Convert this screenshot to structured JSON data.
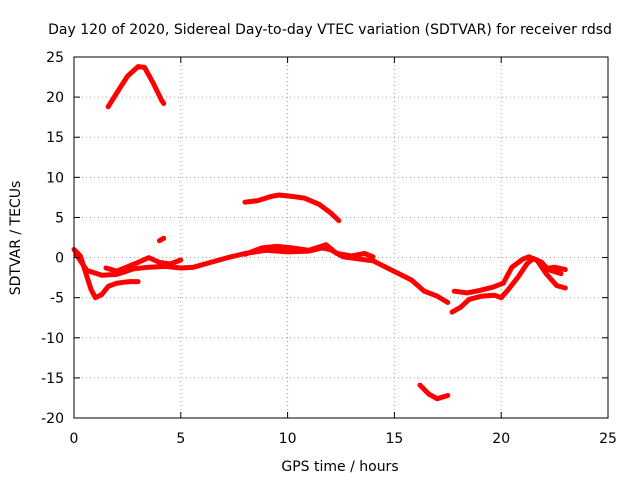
{
  "chart_data": {
    "type": "scatter",
    "title": "Day 120 of 2020, Sidereal Day-to-day VTEC variation (SDTVAR) for receiver rdsd",
    "xlabel": "GPS time / hours",
    "ylabel": "SDTVAR / TECUs",
    "xlim": [
      0,
      25
    ],
    "ylim": [
      -20,
      25
    ],
    "x_ticks": [
      0,
      5,
      10,
      15,
      20,
      25
    ],
    "y_ticks": [
      -20,
      -15,
      -10,
      -5,
      0,
      5,
      10,
      15,
      20,
      25
    ],
    "grid": true,
    "color": "#ff0000",
    "series": [
      {
        "name": "arc-1",
        "points": [
          [
            1.6,
            18.8
          ],
          [
            2.0,
            20.5
          ],
          [
            2.5,
            22.6
          ],
          [
            3.0,
            23.8
          ],
          [
            3.3,
            23.7
          ],
          [
            3.7,
            21.8
          ],
          [
            4.1,
            19.6
          ],
          [
            4.2,
            19.2
          ]
        ]
      },
      {
        "name": "arc-2",
        "points": [
          [
            8.0,
            6.9
          ],
          [
            8.6,
            7.1
          ],
          [
            9.2,
            7.6
          ],
          [
            9.6,
            7.8
          ],
          [
            10.3,
            7.6
          ],
          [
            10.8,
            7.4
          ],
          [
            11.5,
            6.6
          ],
          [
            12.0,
            5.6
          ],
          [
            12.4,
            4.6
          ]
        ]
      },
      {
        "name": "arc-3",
        "points": [
          [
            4.0,
            2.1
          ],
          [
            4.2,
            2.4
          ]
        ]
      },
      {
        "name": "arc-4",
        "points": [
          [
            16.2,
            -15.9
          ],
          [
            16.6,
            -17.0
          ],
          [
            17.0,
            -17.6
          ],
          [
            17.5,
            -17.2
          ]
        ]
      },
      {
        "name": "arc-5",
        "points": [
          [
            0.0,
            1.0
          ],
          [
            0.3,
            0.2
          ],
          [
            0.5,
            -1.5
          ],
          [
            0.8,
            -4.0
          ],
          [
            1.0,
            -5.0
          ],
          [
            1.3,
            -4.6
          ],
          [
            1.6,
            -3.6
          ],
          [
            2.0,
            -3.2
          ],
          [
            2.6,
            -3.0
          ],
          [
            3.0,
            -3.0
          ]
        ]
      },
      {
        "name": "arc-6",
        "points": [
          [
            0.1,
            0.4
          ],
          [
            0.6,
            -1.6
          ],
          [
            1.3,
            -2.2
          ],
          [
            2.0,
            -2.1
          ],
          [
            2.8,
            -1.4
          ],
          [
            3.5,
            -1.2
          ],
          [
            4.3,
            -1.1
          ],
          [
            5.0,
            -1.3
          ],
          [
            5.6,
            -1.2
          ],
          [
            6.4,
            -0.6
          ],
          [
            7.2,
            0.0
          ],
          [
            8.0,
            0.5
          ],
          [
            9.0,
            0.9
          ],
          [
            10.0,
            0.7
          ],
          [
            11.0,
            0.8
          ],
          [
            11.6,
            1.2
          ],
          [
            12.0,
            1.0
          ],
          [
            12.6,
            0.1
          ],
          [
            13.4,
            -0.2
          ],
          [
            14.0,
            -0.4
          ],
          [
            14.6,
            -1.2
          ],
          [
            15.2,
            -2.0
          ],
          [
            15.8,
            -2.8
          ],
          [
            16.4,
            -4.2
          ],
          [
            17.0,
            -4.8
          ],
          [
            17.5,
            -5.6
          ]
        ]
      },
      {
        "name": "arc-7",
        "points": [
          [
            8.0,
            0.4
          ],
          [
            8.8,
            1.2
          ],
          [
            9.5,
            1.4
          ],
          [
            10.2,
            1.2
          ],
          [
            11.0,
            0.9
          ],
          [
            11.8,
            1.6
          ],
          [
            12.3,
            0.5
          ],
          [
            13.0,
            0.2
          ],
          [
            13.6,
            0.5
          ],
          [
            14.0,
            0.1
          ]
        ]
      },
      {
        "name": "arc-8",
        "points": [
          [
            1.5,
            -1.3
          ],
          [
            2.0,
            -1.7
          ],
          [
            3.0,
            -0.6
          ],
          [
            3.5,
            0.0
          ],
          [
            4.0,
            -0.6
          ],
          [
            4.5,
            -0.8
          ],
          [
            5.0,
            -0.3
          ]
        ]
      },
      {
        "name": "arc-9",
        "points": [
          [
            17.7,
            -6.8
          ],
          [
            18.1,
            -6.2
          ],
          [
            18.5,
            -5.2
          ],
          [
            19.1,
            -4.8
          ],
          [
            19.7,
            -4.7
          ],
          [
            20.0,
            -5.0
          ],
          [
            20.3,
            -4.1
          ],
          [
            20.8,
            -2.4
          ],
          [
            21.2,
            -0.8
          ],
          [
            21.5,
            -0.1
          ],
          [
            21.9,
            -0.6
          ],
          [
            22.2,
            -1.5
          ],
          [
            22.8,
            -2.0
          ]
        ]
      },
      {
        "name": "arc-10",
        "points": [
          [
            17.8,
            -4.2
          ],
          [
            18.4,
            -4.4
          ],
          [
            19.0,
            -4.1
          ],
          [
            19.6,
            -3.7
          ],
          [
            20.1,
            -3.2
          ],
          [
            20.5,
            -1.2
          ],
          [
            21.0,
            -0.2
          ],
          [
            21.3,
            0.1
          ],
          [
            21.7,
            -0.4
          ],
          [
            22.1,
            -2.0
          ],
          [
            22.6,
            -3.5
          ],
          [
            23.0,
            -3.8
          ]
        ]
      },
      {
        "name": "arc-11",
        "points": [
          [
            22.0,
            -1.4
          ],
          [
            22.5,
            -1.2
          ],
          [
            23.0,
            -1.5
          ]
        ]
      }
    ]
  }
}
